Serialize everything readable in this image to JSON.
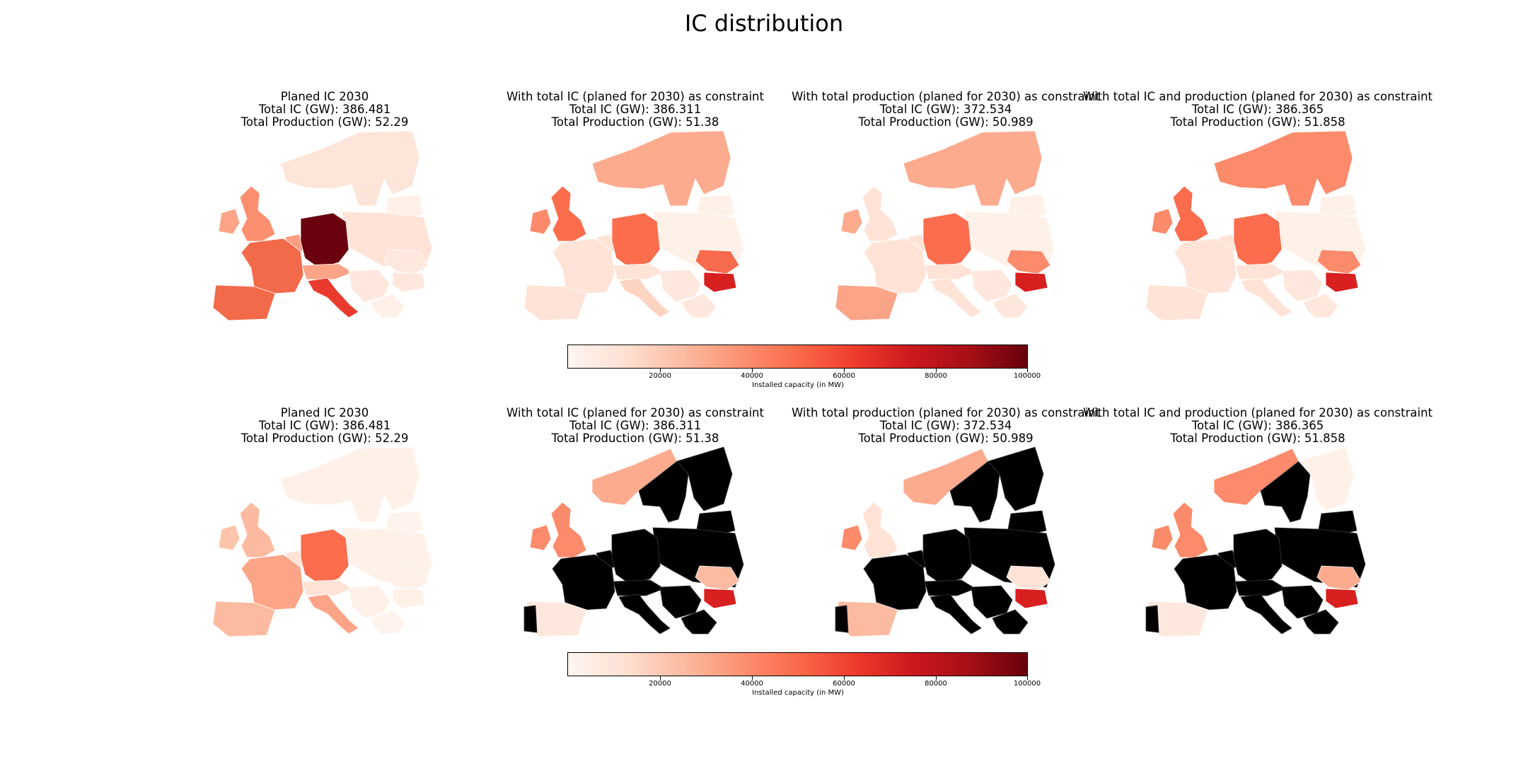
{
  "figure": {
    "title": "IC distribution"
  },
  "rows": [
    {
      "panels": [
        {
          "title_lines": [
            "Planed IC 2030",
            "Total IC (GW): 386.481",
            "Total Production (GW): 52.29"
          ],
          "colors": {
            "iberia": "#f26a4a",
            "uk": "#fb8f6f",
            "ireland": "#fca487",
            "france": "#f26a4a",
            "benelux": "#fc9e80",
            "germany": "#6b010e",
            "italy": "#e83a2d",
            "alps": "#fca487",
            "scandinavia": "#fee5d9",
            "central_east": "#fee3d6",
            "balkans": "#fee8de",
            "romania": "#fee8de",
            "bulgaria": "#fee8de",
            "baltics": "#fff0e8",
            "greece": "#fff1ea"
          }
        },
        {
          "title_lines": [
            "With total IC (planed for 2030) as constraint",
            "Total IC (GW): 386.311",
            "Total Production (GW): 51.38"
          ],
          "colors": {
            "iberia": "#fee3d6",
            "uk": "#fb6d4d",
            "ireland": "#fb8b6b",
            "france": "#fee3d6",
            "benelux": "#fee3d6",
            "germany": "#fb6d4d",
            "italy": "#fdd4c2",
            "alps": "#fee3d6",
            "scandinavia": "#fcab8f",
            "central_east": "#fff0e8",
            "balkans": "#fee8de",
            "romania": "#f86b4c",
            "bulgaria": "#d7201f",
            "baltics": "#fff0e8",
            "greece": "#fee8de"
          }
        },
        {
          "title_lines": [
            "With total production (planed for 2030) as constraint",
            "Total IC (GW): 372.534",
            "Total Production (GW): 50.989"
          ],
          "colors": {
            "iberia": "#fca487",
            "uk": "#fee3d6",
            "ireland": "#fcab8f",
            "france": "#fee3d6",
            "benelux": "#fee3d6",
            "germany": "#fb6d4d",
            "italy": "#fee3d6",
            "alps": "#fee3d6",
            "scandinavia": "#fcab8f",
            "central_east": "#fff0e8",
            "balkans": "#fee8de",
            "romania": "#fb8b6b",
            "bulgaria": "#d7201f",
            "baltics": "#fff0e8",
            "greece": "#fee8de"
          }
        },
        {
          "title_lines": [
            "With total IC and production (planed for 2030) as constraint",
            "Total IC (GW): 386.365",
            "Total Production (GW): 51.858"
          ],
          "colors": {
            "iberia": "#fee3d6",
            "uk": "#fb6d4d",
            "ireland": "#fb8b6b",
            "france": "#fee3d6",
            "benelux": "#fee3d6",
            "germany": "#fb6d4d",
            "italy": "#fee3d6",
            "alps": "#fee3d6",
            "scandinavia": "#fb8b6b",
            "central_east": "#fff0e8",
            "balkans": "#fee8de",
            "romania": "#fb8b6b",
            "bulgaria": "#d7201f",
            "baltics": "#fff0e8",
            "greece": "#fee8de"
          }
        }
      ],
      "colorbar": {
        "ticks": [
          "20000",
          "40000",
          "60000",
          "80000",
          "100000"
        ],
        "label": "Installed capacity (in MW)"
      }
    },
    {
      "panels": [
        {
          "title_lines": [
            "Planed IC 2030",
            "Total IC (GW): 386.481",
            "Total Production (GW): 52.29"
          ],
          "colors": {
            "iberia": "#fcbba1",
            "uk": "#fcbba1",
            "ireland": "#fcc5ab",
            "france": "#fca487",
            "benelux": "#fee3d6",
            "germany": "#fb6d4d",
            "italy": "#fca487",
            "alps": "#fee3d6",
            "scandinavia": "#fff0e8",
            "central_east": "#fff0e8",
            "balkans": "#fff0e8",
            "romania": "#fff0e8",
            "bulgaria": "#fff0e8",
            "baltics": "#fff3ee",
            "greece": "#fff3ee"
          }
        },
        {
          "title_lines": [
            "With total IC (planed for 2030) as constraint",
            "Total IC (GW): 386.311",
            "Total Production (GW): 51.38"
          ],
          "colors": {
            "iberia": "#fee8de",
            "portugal": "#000000",
            "uk": "#fb8b6b",
            "ireland": "#fb8b6b",
            "france": "#000000",
            "benelux": "#000000",
            "germany": "#000000",
            "italy": "#000000",
            "alps": "#000000",
            "norway": "#fcab8f",
            "sweden": "#000000",
            "finland": "#000000",
            "central_east": "#000000",
            "balkans": "#000000",
            "romania": "#fcbba1",
            "bulgaria": "#d7201f",
            "baltics": "#000000",
            "greece": "#000000"
          }
        },
        {
          "title_lines": [
            "With total production (planed for 2030) as constraint",
            "Total IC (GW): 372.534",
            "Total Production (GW): 50.989"
          ],
          "colors": {
            "iberia": "#fcbba1",
            "portugal": "#000000",
            "uk": "#fee3d6",
            "ireland": "#fb8b6b",
            "france": "#000000",
            "benelux": "#000000",
            "germany": "#000000",
            "italy": "#000000",
            "alps": "#000000",
            "norway": "#fcab8f",
            "sweden": "#000000",
            "finland": "#000000",
            "central_east": "#000000",
            "balkans": "#000000",
            "romania": "#fee3d6",
            "bulgaria": "#d7201f",
            "baltics": "#000000",
            "greece": "#000000"
          }
        },
        {
          "title_lines": [
            "With total IC and production (planed for 2030) as constraint",
            "Total IC (GW): 386.365",
            "Total Production (GW): 51.858"
          ],
          "colors": {
            "iberia": "#fee8de",
            "portugal": "#000000",
            "uk": "#fb8b6b",
            "ireland": "#fb8b6b",
            "france": "#000000",
            "benelux": "#000000",
            "germany": "#000000",
            "italy": "#000000",
            "alps": "#000000",
            "norway": "#fb8b6b",
            "sweden": "#000000",
            "finland": "#fff0e8",
            "central_east": "#000000",
            "balkans": "#000000",
            "romania": "#fcab8f",
            "bulgaria": "#d7201f",
            "baltics": "#000000",
            "greece": "#000000"
          }
        }
      ],
      "colorbar": {
        "ticks": [
          "20000",
          "40000",
          "60000",
          "80000",
          "100000"
        ],
        "label": "Installed capacity (in MW)"
      }
    }
  ]
}
